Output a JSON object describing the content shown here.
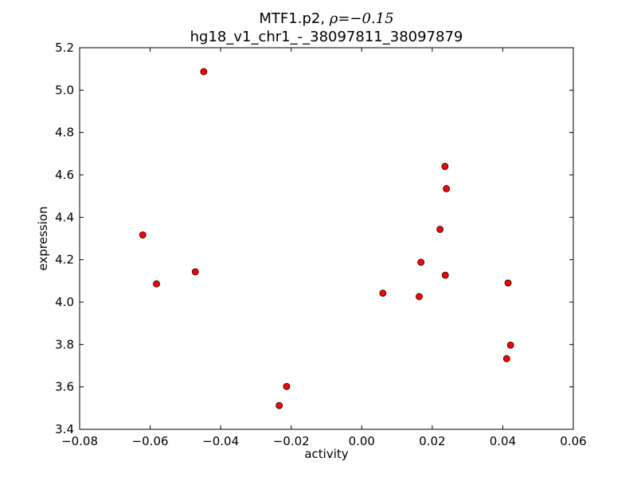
{
  "chart_data": {
    "type": "scatter",
    "title_prefix": "MTF1.p2, ",
    "title_rho": "ρ=−0.15",
    "subtitle": "hg18_v1_chr1_-_38097811_38097879",
    "xlabel": "activity",
    "ylabel": "expression",
    "xlim": [
      -0.08,
      0.06
    ],
    "ylim": [
      3.4,
      5.2
    ],
    "xticks": [
      -0.08,
      -0.06,
      -0.04,
      -0.02,
      0.0,
      0.02,
      0.04,
      0.06
    ],
    "xtick_labels": [
      "−0.08",
      "−0.06",
      "−0.04",
      "−0.02",
      "0.00",
      "0.02",
      "0.04",
      "0.06"
    ],
    "yticks": [
      3.4,
      3.6,
      3.8,
      4.0,
      4.2,
      4.4,
      4.6,
      4.8,
      5.0,
      5.2
    ],
    "ytick_labels": [
      "3.4",
      "3.6",
      "3.8",
      "4.0",
      "4.2",
      "4.4",
      "4.6",
      "4.8",
      "5.0",
      "5.2"
    ],
    "grid": false,
    "marker_color": "#ff0000",
    "marker_edge_color": "#000000",
    "points": [
      {
        "x": -0.0448,
        "y": 5.087
      },
      {
        "x": -0.0621,
        "y": 4.317
      },
      {
        "x": -0.0582,
        "y": 4.086
      },
      {
        "x": -0.0472,
        "y": 4.143
      },
      {
        "x": -0.0213,
        "y": 3.602
      },
      {
        "x": -0.0234,
        "y": 3.512
      },
      {
        "x": 0.006,
        "y": 4.042
      },
      {
        "x": 0.0163,
        "y": 4.026
      },
      {
        "x": 0.0168,
        "y": 4.188
      },
      {
        "x": 0.0222,
        "y": 4.343
      },
      {
        "x": 0.0236,
        "y": 4.64
      },
      {
        "x": 0.024,
        "y": 4.535
      },
      {
        "x": 0.0237,
        "y": 4.127
      },
      {
        "x": 0.0415,
        "y": 4.09
      },
      {
        "x": 0.0422,
        "y": 3.797
      },
      {
        "x": 0.0411,
        "y": 3.733
      }
    ]
  }
}
